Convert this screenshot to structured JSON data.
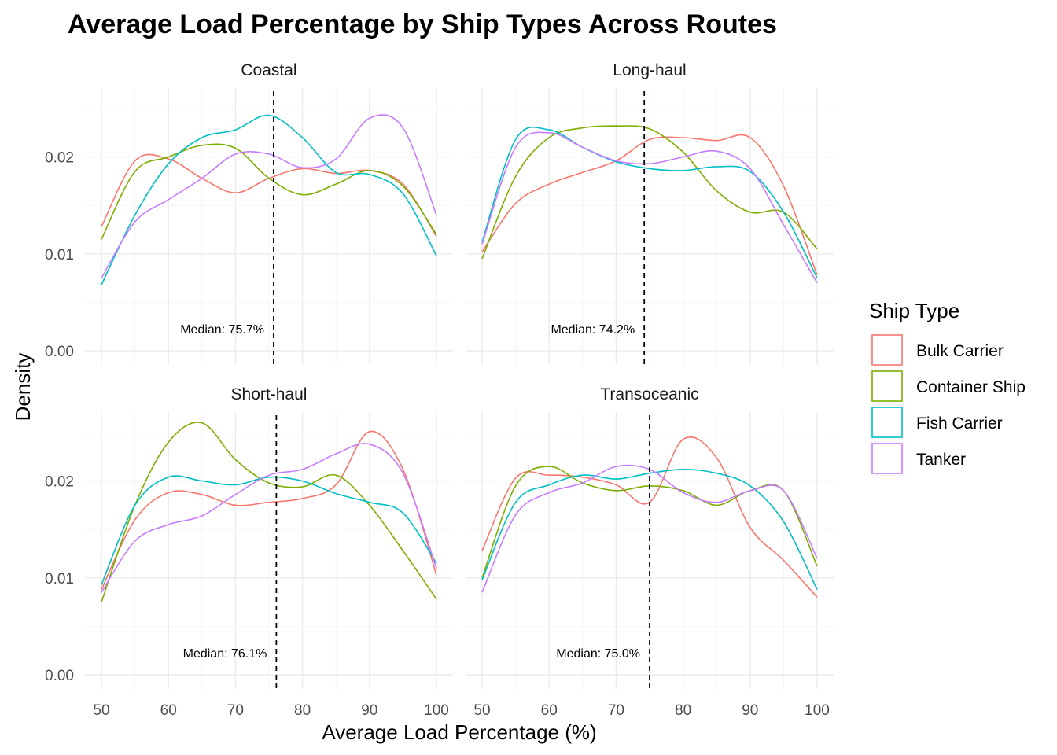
{
  "chart_data": {
    "type": "line",
    "title": "Average Load Percentage by Ship Types Across Routes",
    "xlabel": "Average Load Percentage (%)",
    "ylabel": "Density",
    "xlim": [
      50,
      100
    ],
    "ylim": [
      0,
      0.025
    ],
    "x_ticks": [
      "50",
      "60",
      "70",
      "80",
      "90",
      "100"
    ],
    "y_ticks": [
      "0.00",
      "0.01",
      "0.02"
    ],
    "grid": true,
    "legend": {
      "title": "Ship Type",
      "placement": "right",
      "entries": [
        {
          "name": "Bulk Carrier",
          "color": "#F8766D"
        },
        {
          "name": "Container Ship",
          "color": "#7CAE00"
        },
        {
          "name": "Fish Carrier",
          "color": "#00BFC4"
        },
        {
          "name": "Tanker",
          "color": "#C77CFF"
        }
      ]
    },
    "x": [
      50,
      55,
      60,
      65,
      70,
      75,
      80,
      85,
      90,
      95,
      100
    ],
    "panels": [
      {
        "name": "Coastal",
        "median": 75.7,
        "median_label": "Median: 75.7%",
        "series": [
          {
            "name": "Bulk Carrier",
            "values": [
              0.0128,
              0.0196,
              0.0198,
              0.0178,
              0.0163,
              0.0178,
              0.0188,
              0.0183,
              0.0186,
              0.0172,
              0.0118
            ]
          },
          {
            "name": "Container Ship",
            "values": [
              0.0115,
              0.0185,
              0.02,
              0.0212,
              0.0209,
              0.0178,
              0.0161,
              0.0172,
              0.0186,
              0.017,
              0.012
            ]
          },
          {
            "name": "Fish Carrier",
            "values": [
              0.0068,
              0.014,
              0.0193,
              0.022,
              0.0228,
              0.0243,
              0.022,
              0.0184,
              0.0182,
              0.0162,
              0.0098
            ]
          },
          {
            "name": "Tanker",
            "values": [
              0.0075,
              0.0133,
              0.0156,
              0.0178,
              0.0203,
              0.0203,
              0.0189,
              0.0198,
              0.024,
              0.023,
              0.014
            ]
          }
        ]
      },
      {
        "name": "Long-haul",
        "median": 74.2,
        "median_label": "Median: 74.2%",
        "series": [
          {
            "name": "Bulk Carrier",
            "values": [
              0.0102,
              0.0152,
              0.0172,
              0.0184,
              0.0196,
              0.0218,
              0.022,
              0.0217,
              0.022,
              0.017,
              0.0078
            ]
          },
          {
            "name": "Container Ship",
            "values": [
              0.0095,
              0.018,
              0.022,
              0.023,
              0.0232,
              0.0229,
              0.0205,
              0.0165,
              0.0143,
              0.0143,
              0.0105
            ]
          },
          {
            "name": "Fish Carrier",
            "values": [
              0.0112,
              0.0218,
              0.0228,
              0.021,
              0.0195,
              0.0188,
              0.0186,
              0.019,
              0.0185,
              0.0143,
              0.0075
            ]
          },
          {
            "name": "Tanker",
            "values": [
              0.011,
              0.021,
              0.0225,
              0.021,
              0.0196,
              0.0193,
              0.02,
              0.0206,
              0.0188,
              0.013,
              0.007
            ]
          }
        ]
      },
      {
        "name": "Short-haul",
        "median": 76.1,
        "median_label": "Median: 76.1%",
        "series": [
          {
            "name": "Bulk Carrier",
            "values": [
              0.0088,
              0.016,
              0.0188,
              0.0186,
              0.0175,
              0.0178,
              0.0182,
              0.0196,
              0.0251,
              0.0212,
              0.0103
            ]
          },
          {
            "name": "Container Ship",
            "values": [
              0.0075,
              0.0175,
              0.024,
              0.026,
              0.0222,
              0.0198,
              0.0194,
              0.0206,
              0.0175,
              0.0128,
              0.0078
            ]
          },
          {
            "name": "Fish Carrier",
            "values": [
              0.0093,
              0.0175,
              0.0204,
              0.02,
              0.0196,
              0.0204,
              0.02,
              0.0187,
              0.0178,
              0.0167,
              0.0115
            ]
          },
          {
            "name": "Tanker",
            "values": [
              0.0085,
              0.0138,
              0.0155,
              0.0164,
              0.0186,
              0.0206,
              0.0212,
              0.0228,
              0.0238,
              0.0208,
              0.011
            ]
          }
        ]
      },
      {
        "name": "Transoceanic",
        "median": 75.0,
        "median_label": "Median: 75.0%",
        "series": [
          {
            "name": "Bulk Carrier",
            "values": [
              0.0128,
              0.0203,
              0.0206,
              0.0204,
              0.0196,
              0.0178,
              0.0243,
              0.0224,
              0.0152,
              0.0118,
              0.008
            ]
          },
          {
            "name": "Container Ship",
            "values": [
              0.01,
              0.0195,
              0.0215,
              0.0198,
              0.019,
              0.0195,
              0.019,
              0.0175,
              0.019,
              0.019,
              0.0112
            ]
          },
          {
            "name": "Fish Carrier",
            "values": [
              0.0098,
              0.0178,
              0.0196,
              0.0206,
              0.0202,
              0.0208,
              0.0212,
              0.0208,
              0.0195,
              0.0158,
              0.0088
            ]
          },
          {
            "name": "Tanker",
            "values": [
              0.0085,
              0.0165,
              0.0188,
              0.0198,
              0.0215,
              0.0212,
              0.0188,
              0.0178,
              0.019,
              0.019,
              0.012
            ]
          }
        ]
      }
    ]
  }
}
